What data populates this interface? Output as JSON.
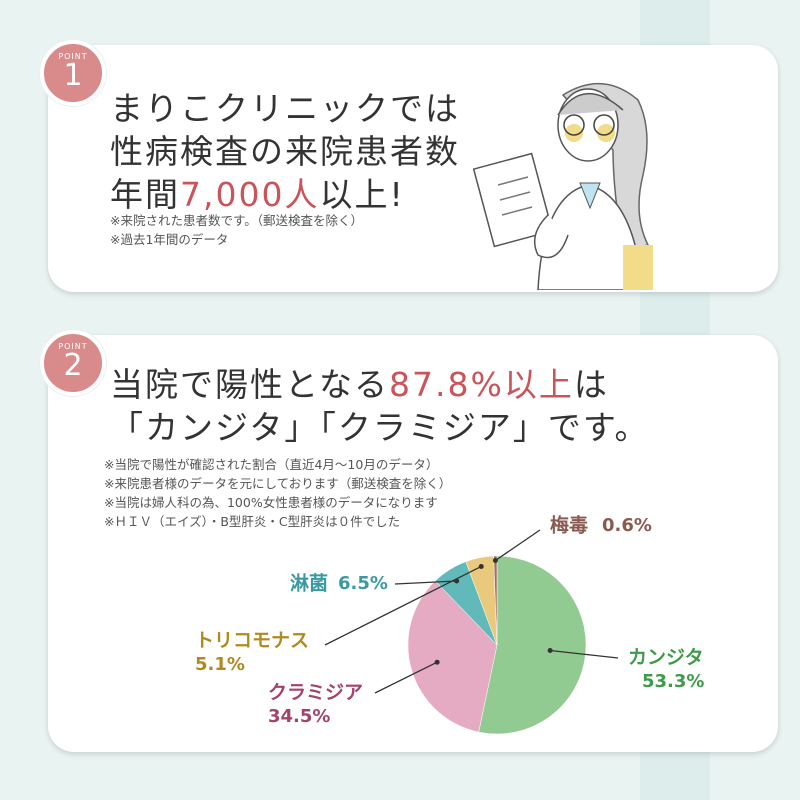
{
  "point1": {
    "badge_label": "POINT",
    "badge_number": "1",
    "line1": "まりこクリニックでは",
    "line2": "性病検査の来院患者数",
    "line3_before": "年間",
    "line3_highlight": "7,000人",
    "line3_after": "以上!",
    "notes": [
      "※来院された患者数です。（郵送検査を除く）",
      "※過去1年間のデータ"
    ]
  },
  "point2": {
    "badge_label": "POINT",
    "badge_number": "2",
    "line1_before": "当院で陽性となる",
    "line1_highlight": "87.8%以上",
    "line1_after": "は",
    "line2": "「カンジタ」「クラミジア」です。",
    "notes": [
      "※当院で陽性が確認された割合（直近4月〜10月のデータ）",
      "※来院患者様のデータを元にしております（郵送検査を除く）",
      "※当院は婦人科の為、100%女性患者様のデータになります",
      "※ＨＩＶ（エイズ）・B型肝炎・C型肝炎は０件でした"
    ]
  },
  "chart_data": {
    "type": "pie",
    "categories": [
      "カンジタ",
      "クラミジア",
      "淋菌",
      "トリコモナス",
      "梅毒"
    ],
    "values": [
      53.3,
      34.5,
      6.5,
      5.1,
      0.6
    ],
    "value_labels": [
      "53.3%",
      "34.5%",
      "6.5%",
      "5.1%",
      "0.6%"
    ],
    "colors": [
      "#92cb92",
      "#e4abc2",
      "#62b9ba",
      "#e9c97c",
      "#a0705f"
    ],
    "label_colors": [
      "#3f9a4a",
      "#a3436d",
      "#3b9aa1",
      "#b08a20",
      "#8a5a50"
    ]
  }
}
